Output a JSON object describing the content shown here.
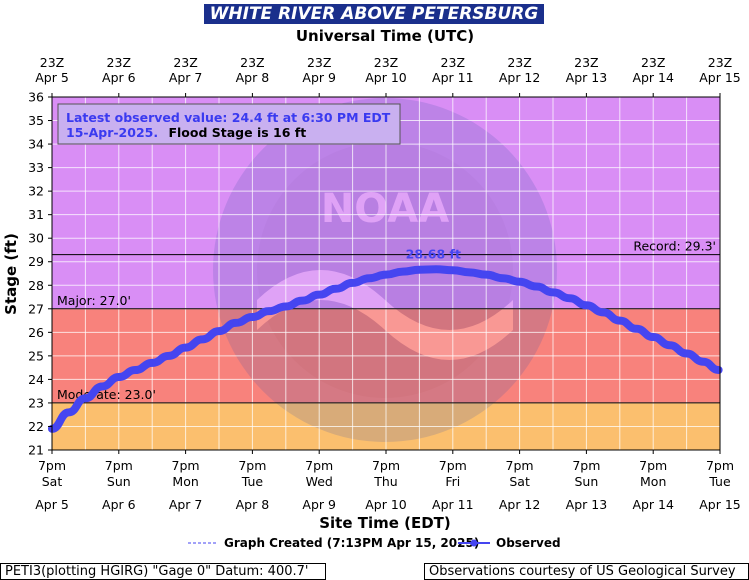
{
  "title": "WHITE RIVER ABOVE PETERSBURG",
  "top_axis_title": "Universal Time (UTC)",
  "bottom_axis_title": "Site Time (EDT)",
  "y_axis_title": "Stage (ft)",
  "info_box": {
    "line1": "Latest observed value: 24.4 ft at 6:30 PM EDT",
    "line2_date": "15-Apr-2025.",
    "line2_flood": "Flood Stage is 16 ft"
  },
  "legend": {
    "graph_created": "Graph Created (7:13PM Apr 15, 2025)",
    "observed": "Observed"
  },
  "footer": {
    "left": "PETI3(plotting HGIRG) \"Gage 0\" Datum: 400.7'",
    "right": "Observations courtesy of US Geological Survey"
  },
  "colors": {
    "record_zone": "#d98ef5",
    "major_zone": "#f8827c",
    "moderate_zone": "#f37c7a",
    "minor_zone": "#fbbf6e",
    "series": "#4545f0",
    "title_bg": "#1a2f8c"
  },
  "chart_data": {
    "type": "line",
    "title": "WHITE RIVER ABOVE PETERSBURG",
    "xlabel": "Site Time (EDT)",
    "ylabel": "Stage (ft)",
    "ylim": [
      21,
      36
    ],
    "yticks": [
      "21",
      "22",
      "23",
      "24",
      "25",
      "26",
      "27",
      "28",
      "29",
      "30",
      "31",
      "32",
      "33",
      "34",
      "35",
      "36"
    ],
    "grid": true,
    "legend_position": "bottom",
    "x_ticks_top": [
      {
        "time": "23Z",
        "date": "Apr 5"
      },
      {
        "time": "23Z",
        "date": "Apr 6"
      },
      {
        "time": "23Z",
        "date": "Apr 7"
      },
      {
        "time": "23Z",
        "date": "Apr 8"
      },
      {
        "time": "23Z",
        "date": "Apr 9"
      },
      {
        "time": "23Z",
        "date": "Apr 10"
      },
      {
        "time": "23Z",
        "date": "Apr 11"
      },
      {
        "time": "23Z",
        "date": "Apr 12"
      },
      {
        "time": "23Z",
        "date": "Apr 13"
      },
      {
        "time": "23Z",
        "date": "Apr 14"
      },
      {
        "time": "23Z",
        "date": "Apr 15"
      }
    ],
    "x_ticks_bottom": [
      {
        "time": "7pm",
        "day": "Sat",
        "date": "Apr 5"
      },
      {
        "time": "7pm",
        "day": "Sun",
        "date": "Apr 6"
      },
      {
        "time": "7pm",
        "day": "Mon",
        "date": "Apr 7"
      },
      {
        "time": "7pm",
        "day": "Tue",
        "date": "Apr 8"
      },
      {
        "time": "7pm",
        "day": "Wed",
        "date": "Apr 9"
      },
      {
        "time": "7pm",
        "day": "Thu",
        "date": "Apr 10"
      },
      {
        "time": "7pm",
        "day": "Fri",
        "date": "Apr 11"
      },
      {
        "time": "7pm",
        "day": "Sat",
        "date": "Apr 12"
      },
      {
        "time": "7pm",
        "day": "Sun",
        "date": "Apr 13"
      },
      {
        "time": "7pm",
        "day": "Mon",
        "date": "Apr 14"
      },
      {
        "time": "7pm",
        "day": "Tue",
        "date": "Apr 15"
      }
    ],
    "thresholds": [
      {
        "label": "Record: 29.3'",
        "value": 29.3
      },
      {
        "label": "Major: 27.0'",
        "value": 27.0
      },
      {
        "label": "Moderate: 23.0'",
        "value": 23.0
      }
    ],
    "peak_label": "28.68 ft",
    "peak": {
      "x": "Apr 11 12:00 EDT",
      "y": 28.68
    },
    "series": [
      {
        "name": "Observed",
        "x": [
          "Apr 5 19:00",
          "Apr 6 01:00",
          "Apr 6 07:00",
          "Apr 6 13:00",
          "Apr 6 19:00",
          "Apr 7 01:00",
          "Apr 7 07:00",
          "Apr 7 13:00",
          "Apr 7 19:00",
          "Apr 8 01:00",
          "Apr 8 07:00",
          "Apr 8 13:00",
          "Apr 8 19:00",
          "Apr 9 01:00",
          "Apr 9 07:00",
          "Apr 9 13:00",
          "Apr 9 19:00",
          "Apr 10 01:00",
          "Apr 10 07:00",
          "Apr 10 13:00",
          "Apr 10 19:00",
          "Apr 11 01:00",
          "Apr 11 07:00",
          "Apr 11 13:00",
          "Apr 11 19:00",
          "Apr 12 01:00",
          "Apr 12 07:00",
          "Apr 12 13:00",
          "Apr 12 19:00",
          "Apr 13 01:00",
          "Apr 13 07:00",
          "Apr 13 13:00",
          "Apr 13 19:00",
          "Apr 14 01:00",
          "Apr 14 07:00",
          "Apr 14 13:00",
          "Apr 14 19:00",
          "Apr 15 01:00",
          "Apr 15 07:00",
          "Apr 15 13:00",
          "Apr 15 18:30"
        ],
        "values": [
          21.9,
          22.6,
          23.2,
          23.7,
          24.1,
          24.4,
          24.7,
          25.0,
          25.35,
          25.7,
          26.05,
          26.4,
          26.65,
          26.9,
          27.1,
          27.35,
          27.6,
          27.85,
          28.1,
          28.3,
          28.45,
          28.58,
          28.66,
          28.68,
          28.64,
          28.55,
          28.45,
          28.3,
          28.15,
          27.95,
          27.7,
          27.45,
          27.15,
          26.85,
          26.5,
          26.15,
          25.8,
          25.45,
          25.1,
          24.75,
          24.4
        ]
      }
    ]
  }
}
